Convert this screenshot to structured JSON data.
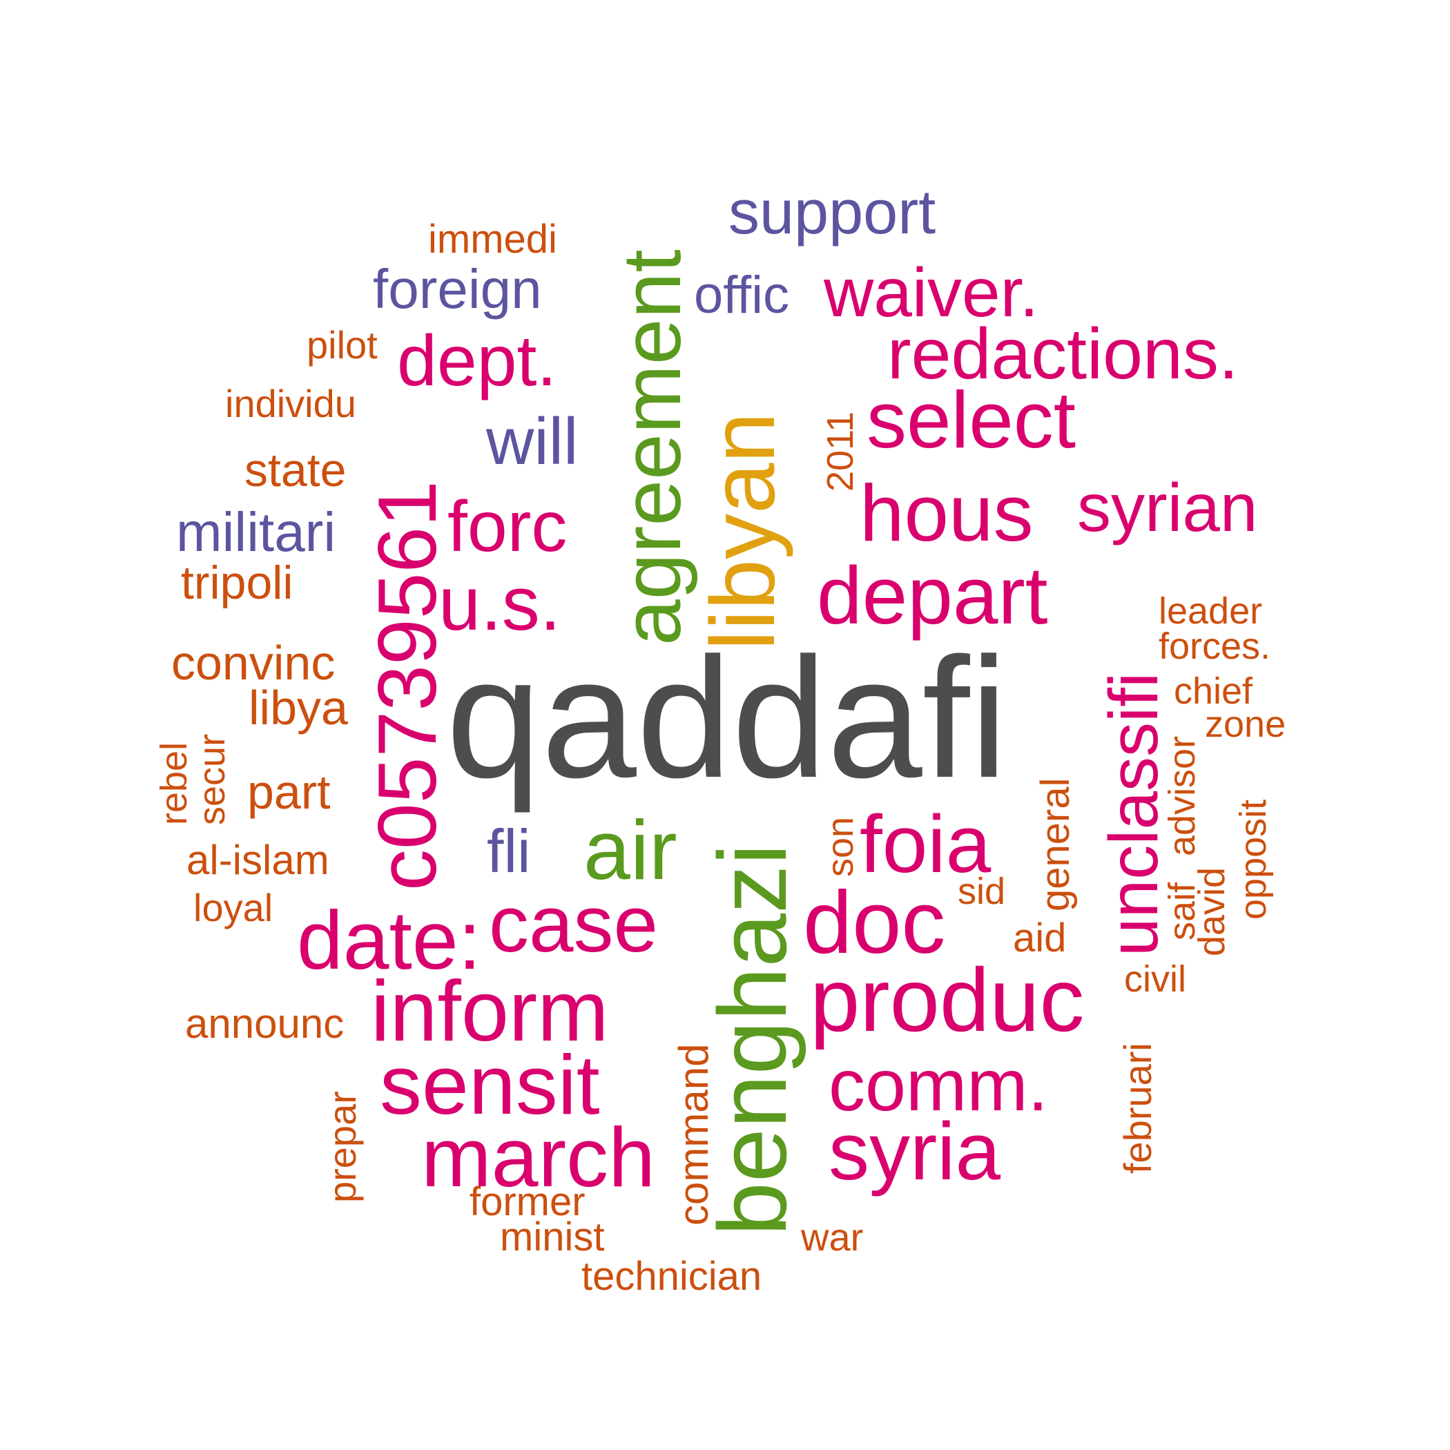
{
  "palette": {
    "gray": "#4d4d4d",
    "magenta": "#d9006e",
    "green": "#5a9a1e",
    "gold": "#e0a010",
    "purple": "#5b55a0",
    "orange": "#cc4f0e"
  },
  "words": [
    {
      "text": "qaddafi",
      "color": "gray",
      "orientation": "horizontal"
    },
    {
      "text": "benghazi",
      "color": "green",
      "orientation": "vertical"
    },
    {
      "text": "agreement",
      "color": "green",
      "orientation": "vertical"
    },
    {
      "text": "libyan",
      "color": "gold",
      "orientation": "vertical"
    },
    {
      "text": "c05739561",
      "color": "magenta",
      "orientation": "vertical"
    },
    {
      "text": "unclassifi",
      "color": "magenta",
      "orientation": "vertical"
    },
    {
      "text": "air",
      "color": "green",
      "orientation": "horizontal"
    },
    {
      "text": "support",
      "color": "purple",
      "orientation": "horizontal"
    },
    {
      "text": "waiver.",
      "color": "magenta",
      "orientation": "horizontal"
    },
    {
      "text": "redactions.",
      "color": "magenta",
      "orientation": "horizontal"
    },
    {
      "text": "select",
      "color": "magenta",
      "orientation": "horizontal"
    },
    {
      "text": "hous",
      "color": "magenta",
      "orientation": "horizontal"
    },
    {
      "text": "syrian",
      "color": "magenta",
      "orientation": "horizontal"
    },
    {
      "text": "depart",
      "color": "magenta",
      "orientation": "horizontal"
    },
    {
      "text": "dept.",
      "color": "magenta",
      "orientation": "horizontal"
    },
    {
      "text": "forc",
      "color": "magenta",
      "orientation": "horizontal"
    },
    {
      "text": "u.s.",
      "color": "magenta",
      "orientation": "horizontal"
    },
    {
      "text": "foia",
      "color": "magenta",
      "orientation": "horizontal"
    },
    {
      "text": "doc",
      "color": "magenta",
      "orientation": "horizontal"
    },
    {
      "text": "case",
      "color": "magenta",
      "orientation": "horizontal"
    },
    {
      "text": "date:",
      "color": "magenta",
      "orientation": "horizontal"
    },
    {
      "text": "inform",
      "color": "magenta",
      "orientation": "horizontal"
    },
    {
      "text": "produc",
      "color": "magenta",
      "orientation": "horizontal"
    },
    {
      "text": "sensit",
      "color": "magenta",
      "orientation": "horizontal"
    },
    {
      "text": "comm.",
      "color": "magenta",
      "orientation": "horizontal"
    },
    {
      "text": "march",
      "color": "magenta",
      "orientation": "horizontal"
    },
    {
      "text": "syria",
      "color": "magenta",
      "orientation": "horizontal"
    },
    {
      "text": "foreign",
      "color": "purple",
      "orientation": "horizontal"
    },
    {
      "text": "offic",
      "color": "purple",
      "orientation": "horizontal"
    },
    {
      "text": "will",
      "color": "purple",
      "orientation": "horizontal"
    },
    {
      "text": "militari",
      "color": "purple",
      "orientation": "horizontal"
    },
    {
      "text": "fli",
      "color": "purple",
      "orientation": "horizontal"
    },
    {
      "text": "immedi",
      "color": "orange",
      "orientation": "horizontal"
    },
    {
      "text": "pilot",
      "color": "orange",
      "orientation": "horizontal"
    },
    {
      "text": "individu",
      "color": "orange",
      "orientation": "horizontal"
    },
    {
      "text": "state",
      "color": "orange",
      "orientation": "horizontal"
    },
    {
      "text": "tripoli",
      "color": "orange",
      "orientation": "horizontal"
    },
    {
      "text": "convinc",
      "color": "orange",
      "orientation": "horizontal"
    },
    {
      "text": "libya",
      "color": "orange",
      "orientation": "horizontal"
    },
    {
      "text": "part",
      "color": "orange",
      "orientation": "horizontal"
    },
    {
      "text": "al-islam",
      "color": "orange",
      "orientation": "horizontal"
    },
    {
      "text": "loyal",
      "color": "orange",
      "orientation": "horizontal"
    },
    {
      "text": "announc",
      "color": "orange",
      "orientation": "horizontal"
    },
    {
      "text": "former",
      "color": "orange",
      "orientation": "horizontal"
    },
    {
      "text": "minist",
      "color": "orange",
      "orientation": "horizontal"
    },
    {
      "text": "technician",
      "color": "orange",
      "orientation": "horizontal"
    },
    {
      "text": "war",
      "color": "orange",
      "orientation": "horizontal"
    },
    {
      "text": "leader",
      "color": "orange",
      "orientation": "horizontal"
    },
    {
      "text": "forces.",
      "color": "orange",
      "orientation": "horizontal"
    },
    {
      "text": "chief",
      "color": "orange",
      "orientation": "horizontal"
    },
    {
      "text": "zone",
      "color": "orange",
      "orientation": "horizontal"
    },
    {
      "text": "sid",
      "color": "orange",
      "orientation": "horizontal"
    },
    {
      "text": "aid",
      "color": "orange",
      "orientation": "horizontal"
    },
    {
      "text": "civil",
      "color": "orange",
      "orientation": "horizontal"
    },
    {
      "text": "2011",
      "color": "orange",
      "orientation": "vertical"
    },
    {
      "text": "rebel",
      "color": "orange",
      "orientation": "vertical"
    },
    {
      "text": "secur",
      "color": "orange",
      "orientation": "vertical"
    },
    {
      "text": "son",
      "color": "orange",
      "orientation": "vertical"
    },
    {
      "text": "general",
      "color": "orange",
      "orientation": "vertical"
    },
    {
      "text": "advisor",
      "color": "orange",
      "orientation": "vertical"
    },
    {
      "text": "saif",
      "color": "orange",
      "orientation": "vertical"
    },
    {
      "text": "david",
      "color": "orange",
      "orientation": "vertical"
    },
    {
      "text": "opposit",
      "color": "orange",
      "orientation": "vertical"
    },
    {
      "text": "command",
      "color": "orange",
      "orientation": "vertical"
    },
    {
      "text": "prepar",
      "color": "orange",
      "orientation": "vertical"
    },
    {
      "text": "februari",
      "color": "orange",
      "orientation": "vertical"
    }
  ]
}
